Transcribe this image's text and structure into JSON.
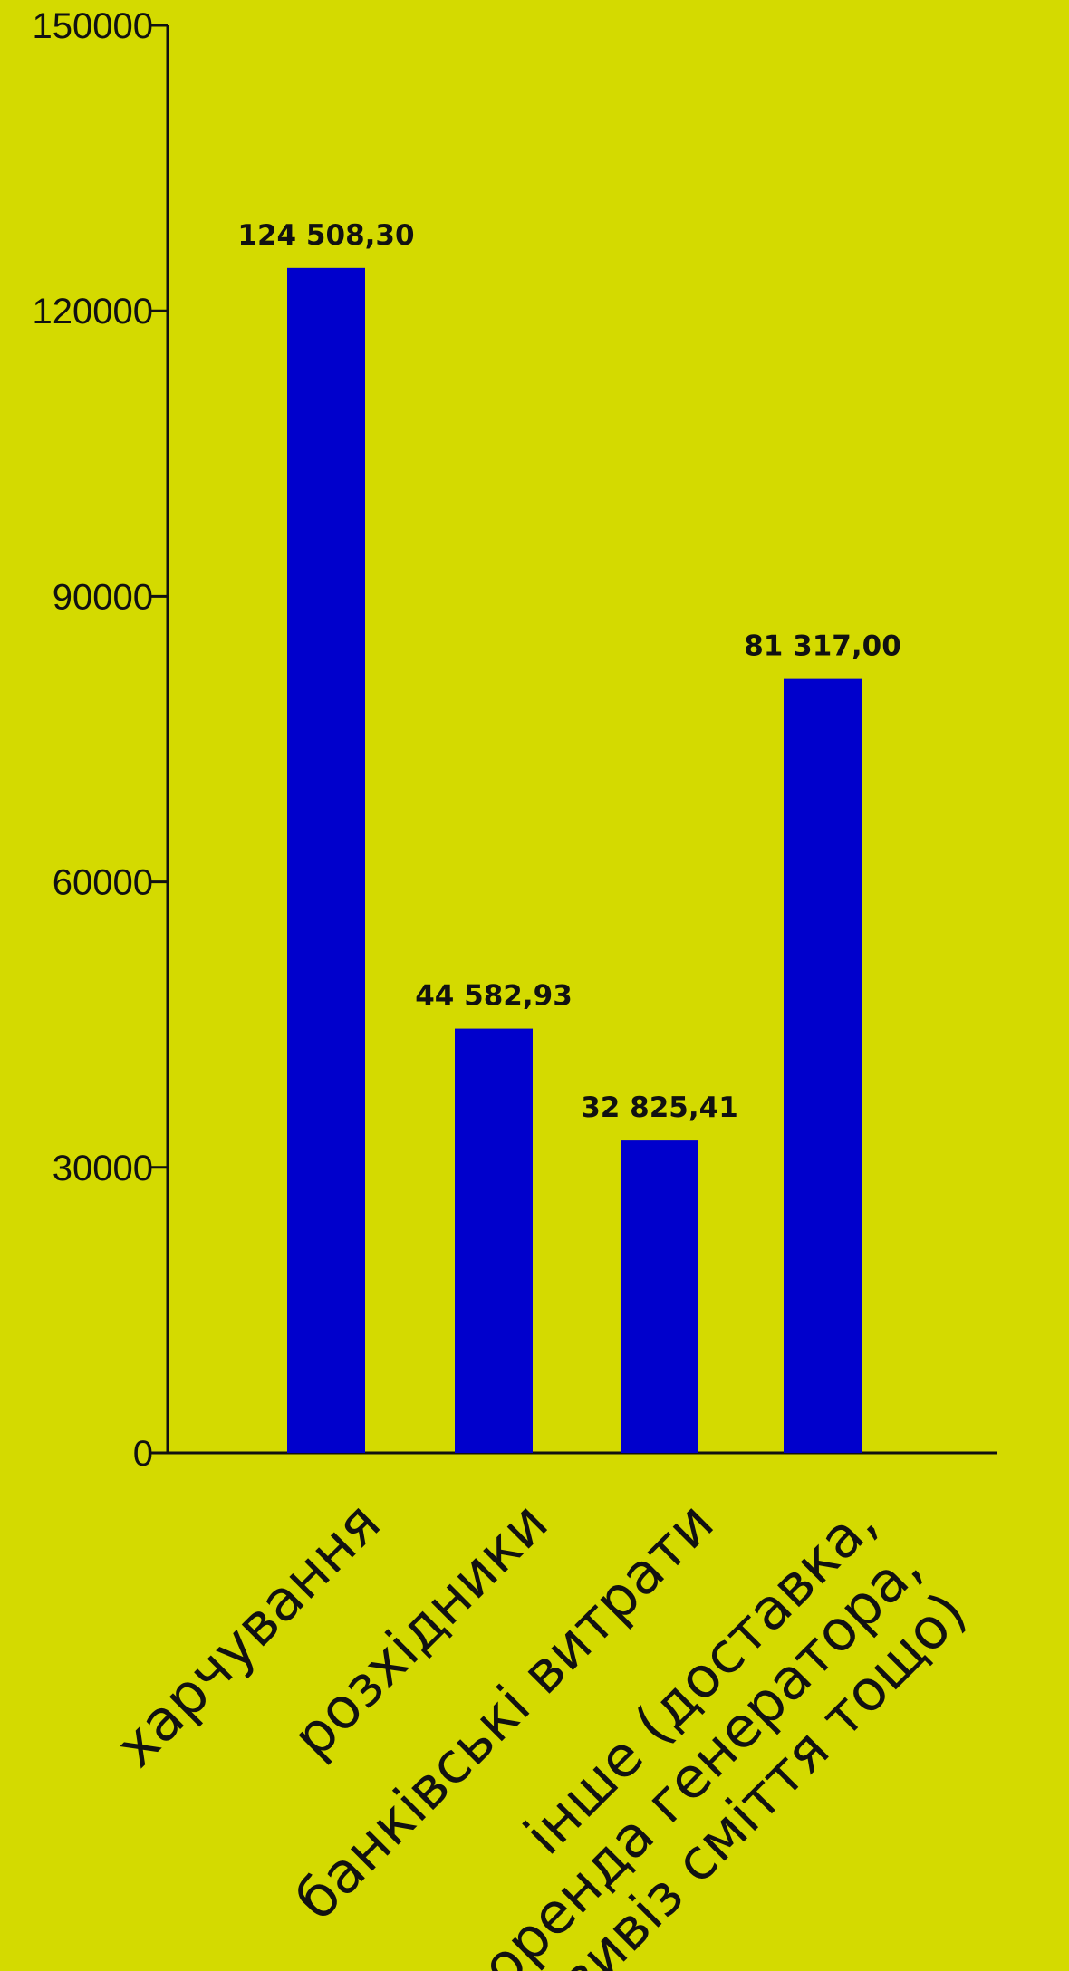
{
  "colors": {
    "background": "#d4da00",
    "bar": "#0000cc",
    "axis": "#111111",
    "text": "#111111"
  },
  "chart_data": {
    "type": "bar",
    "title": "",
    "xlabel": "",
    "ylabel": "",
    "ylim": [
      0,
      150000
    ],
    "yticks": [
      0,
      30000,
      60000,
      90000,
      120000,
      150000
    ],
    "ytick_labels": [
      "0",
      "30000",
      "60000",
      "90000",
      "120000",
      "150000"
    ],
    "grid": false,
    "categories": [
      [
        "харчування"
      ],
      [
        "розхідники"
      ],
      [
        "банківські витрати"
      ],
      [
        "інше (доставка,",
        "оренда генератора,",
        "вивіз сміття тощо)"
      ]
    ],
    "values": [
      124508.3,
      44582.93,
      32825.41,
      81317.0
    ],
    "data_labels": [
      "124 508,30",
      "44 582,93",
      "32 825,41",
      "81 317,00"
    ]
  }
}
